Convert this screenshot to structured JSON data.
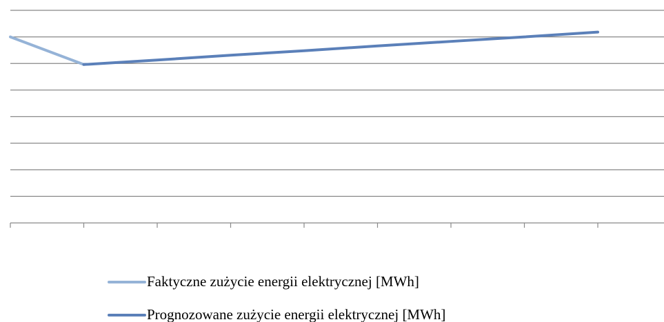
{
  "chart_data": {
    "type": "line",
    "categories": [
      null,
      null,
      null,
      null,
      null,
      null,
      null,
      null,
      null
    ],
    "series": [
      {
        "name": "Faktyczne zużycie energii elektrycznej [MWh]",
        "color": "#95b3d7",
        "values": [
          7.0,
          5.96,
          null,
          null,
          null,
          null,
          null,
          null,
          null
        ]
      },
      {
        "name": "Prognozowane zużycie energii elektrycznej [MWh]",
        "color": "#5b80b9",
        "values": [
          null,
          5.96,
          6.13,
          6.31,
          6.48,
          6.66,
          6.83,
          7.0,
          7.18
        ]
      }
    ],
    "ylim": [
      0,
      8
    ],
    "yticks": [
      0,
      1,
      2,
      3,
      4,
      5,
      6,
      7,
      8
    ],
    "grid": true,
    "legend": "bottom"
  }
}
